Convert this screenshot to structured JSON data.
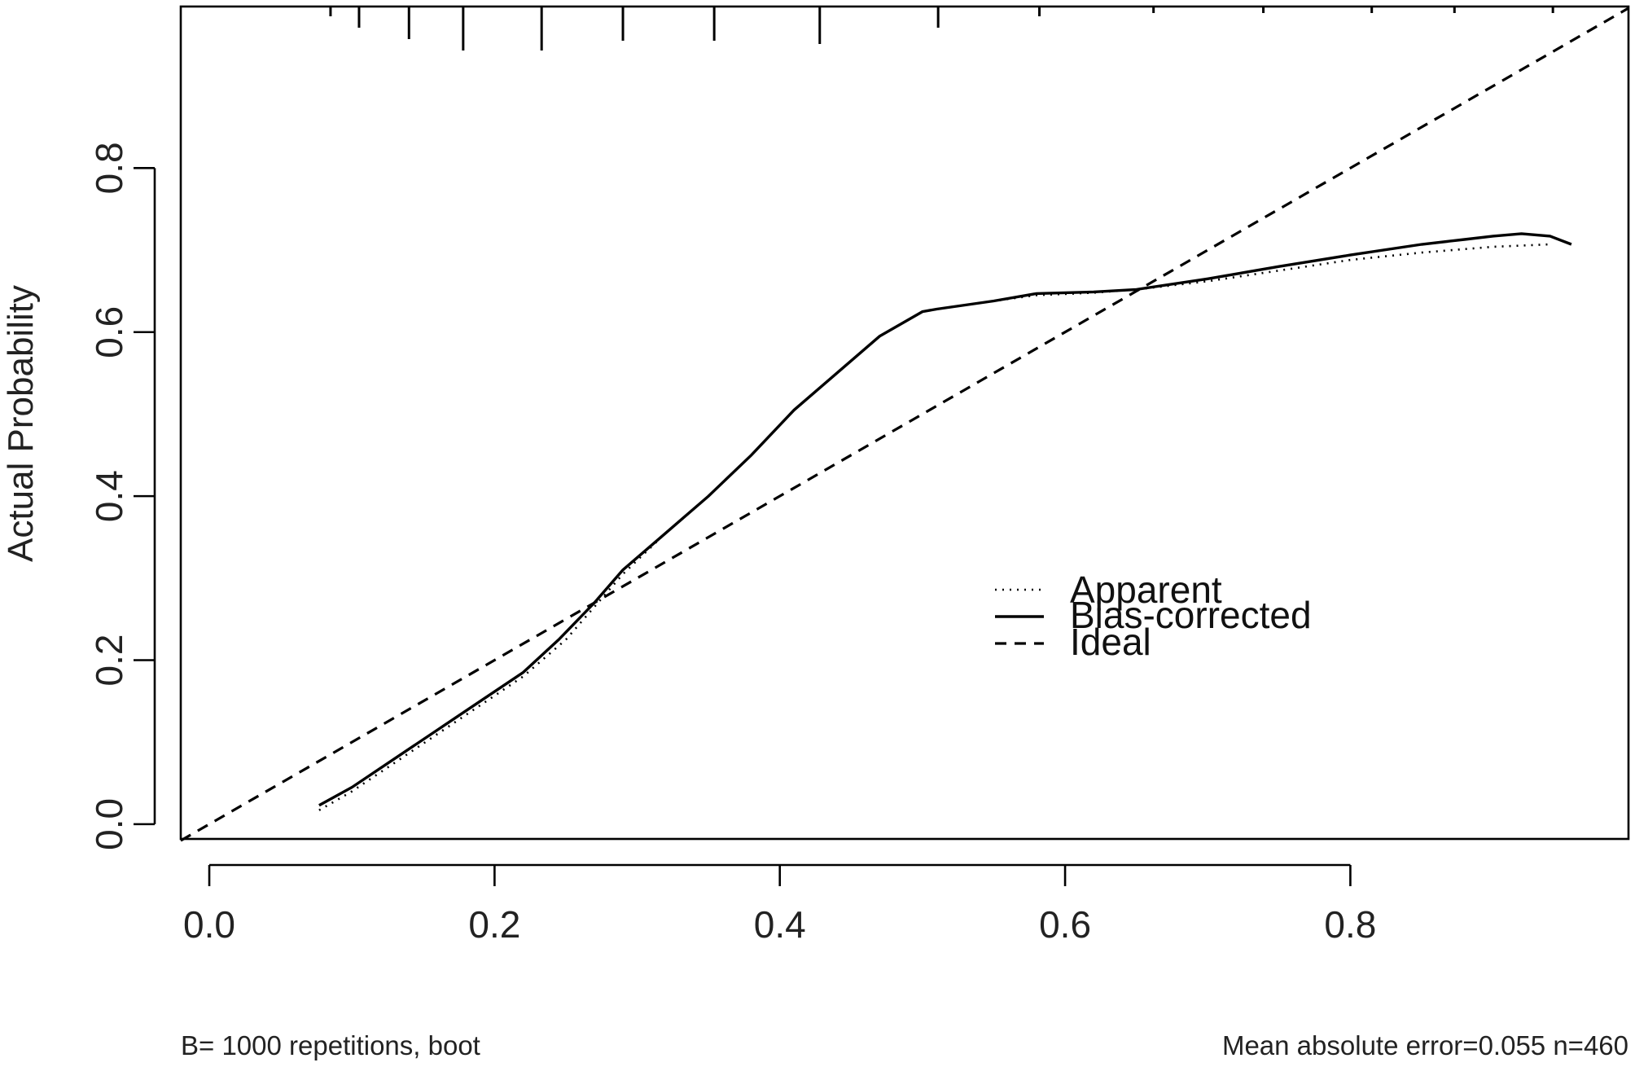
{
  "chart_data": {
    "type": "line",
    "title": "",
    "xlabel": "",
    "ylabel": "Actual Probability",
    "xlim": [
      -0.02,
      0.995
    ],
    "ylim": [
      -0.018,
      0.997
    ],
    "x_ticks": [
      0.0,
      0.2,
      0.4,
      0.6,
      0.8
    ],
    "x_tick_labels": [
      "0.0",
      "0.2",
      "0.4",
      "0.6",
      "0.8"
    ],
    "y_ticks": [
      0.0,
      0.2,
      0.4,
      0.6,
      0.8
    ],
    "y_tick_labels": [
      "0.0",
      "0.2",
      "0.4",
      "0.6",
      "0.8"
    ],
    "grid": false,
    "legend_position": "center-right",
    "series": [
      {
        "name": "Apparent",
        "style": "dotted",
        "x": [
          0.077,
          0.1,
          0.13,
          0.16,
          0.19,
          0.22,
          0.25,
          0.27,
          0.29,
          0.32,
          0.35,
          0.38,
          0.41,
          0.44,
          0.47,
          0.5,
          0.51,
          0.55,
          0.58,
          0.62,
          0.65,
          0.7,
          0.75,
          0.8,
          0.85,
          0.9,
          0.94
        ],
        "y": [
          0.017,
          0.04,
          0.075,
          0.11,
          0.145,
          0.18,
          0.225,
          0.265,
          0.305,
          0.355,
          0.4,
          0.45,
          0.505,
          0.55,
          0.595,
          0.625,
          0.628,
          0.638,
          0.645,
          0.648,
          0.652,
          0.662,
          0.675,
          0.688,
          0.697,
          0.704,
          0.707
        ]
      },
      {
        "name": "Bias-corrected",
        "style": "solid",
        "x": [
          0.077,
          0.1,
          0.13,
          0.16,
          0.19,
          0.22,
          0.245,
          0.27,
          0.29,
          0.32,
          0.35,
          0.38,
          0.41,
          0.44,
          0.47,
          0.5,
          0.51,
          0.55,
          0.58,
          0.62,
          0.65,
          0.7,
          0.75,
          0.8,
          0.85,
          0.88,
          0.9,
          0.92,
          0.94,
          0.955
        ],
        "y": [
          0.023,
          0.045,
          0.08,
          0.115,
          0.15,
          0.185,
          0.225,
          0.27,
          0.31,
          0.355,
          0.4,
          0.45,
          0.505,
          0.55,
          0.595,
          0.625,
          0.628,
          0.638,
          0.647,
          0.649,
          0.652,
          0.665,
          0.68,
          0.694,
          0.707,
          0.713,
          0.717,
          0.72,
          0.717,
          0.707
        ]
      },
      {
        "name": "Ideal",
        "style": "dashed",
        "x": [
          -0.02,
          0.995
        ],
        "y": [
          -0.02,
          0.995
        ]
      }
    ],
    "rug_x": [
      0.085,
      0.105,
      0.14,
      0.178,
      0.233,
      0.29,
      0.354,
      0.428,
      0.511,
      0.582,
      0.662,
      0.739,
      0.815,
      0.873,
      0.942
    ],
    "rug_len": [
      12,
      26,
      40,
      54,
      54,
      42,
      42,
      46,
      26,
      12,
      8,
      8,
      8,
      8,
      8
    ],
    "notes": {
      "left": "B= 1000 repetitions, boot",
      "right": "Mean absolute error=0.055 n=460"
    }
  }
}
